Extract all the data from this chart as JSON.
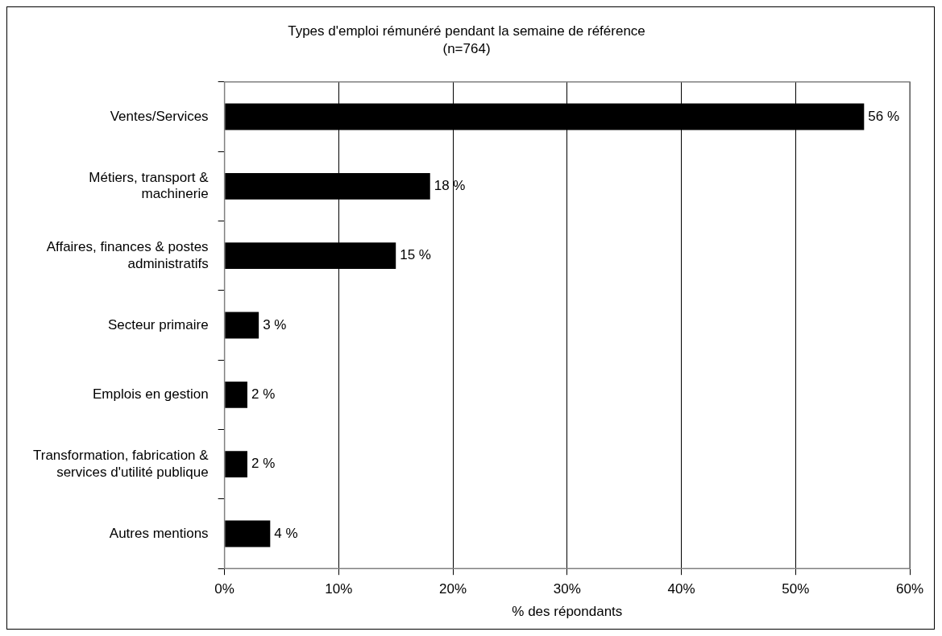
{
  "chart_data": {
    "type": "bar",
    "orientation": "horizontal",
    "title": "Types d'emploi rémunéré pendant la semaine de référence",
    "subtitle": "(n=764)",
    "xlabel": "% des répondants",
    "categories": [
      "Ventes/Services",
      "Métiers, transport & machinerie",
      "Affaires, finances & postes administratifs",
      "Secteur primaire",
      "Emplois en gestion",
      "Transformation, fabrication & services d'utilité publique",
      "Autres mentions"
    ],
    "values": [
      56,
      18,
      15,
      3,
      2,
      2,
      4
    ],
    "value_labels": [
      "56 %",
      "18 %",
      "15 %",
      "3 %",
      "2 %",
      "2 %",
      "4 %"
    ],
    "color": "#000000",
    "xlim": [
      0,
      60
    ],
    "xticks": [
      {
        "value": 0,
        "label": "0%"
      },
      {
        "value": 10,
        "label": "10%"
      },
      {
        "value": 20,
        "label": "20%"
      },
      {
        "value": 30,
        "label": "30%"
      },
      {
        "value": 40,
        "label": "40%"
      },
      {
        "value": 50,
        "label": "50%"
      },
      {
        "value": 60,
        "label": "60%"
      }
    ],
    "grid": "x",
    "legend": false
  }
}
